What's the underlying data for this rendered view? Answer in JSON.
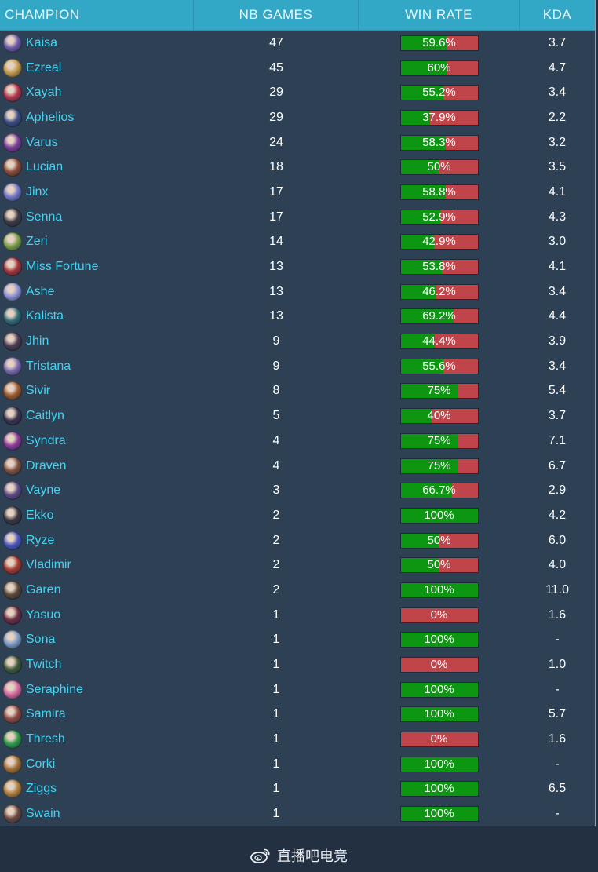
{
  "header": {
    "champion": "CHAMPION",
    "games": "NB GAMES",
    "win_rate": "WIN RATE",
    "kda": "KDA"
  },
  "colors": {
    "win": "#0d9612",
    "loss": "#c0454a",
    "name": "#43d3f2",
    "header_bg": "#33a7c6"
  },
  "rows": [
    {
      "name": "Kaisa",
      "games": "47",
      "win_label": "59.6%",
      "win": 59.6,
      "kda": "3.7",
      "avatar": "#6b5aa8"
    },
    {
      "name": "Ezreal",
      "games": "45",
      "win_label": "60%",
      "win": 60,
      "kda": "4.7",
      "avatar": "#c49a4a"
    },
    {
      "name": "Xayah",
      "games": "29",
      "win_label": "55.2%",
      "win": 55.2,
      "kda": "3.4",
      "avatar": "#b0364e"
    },
    {
      "name": "Aphelios",
      "games": "29",
      "win_label": "37.9%",
      "win": 37.9,
      "kda": "2.2",
      "avatar": "#3b4f86"
    },
    {
      "name": "Varus",
      "games": "24",
      "win_label": "58.3%",
      "win": 58.3,
      "kda": "3.2",
      "avatar": "#7a3f9c"
    },
    {
      "name": "Lucian",
      "games": "18",
      "win_label": "50%",
      "win": 50,
      "kda": "3.5",
      "avatar": "#8c4c3a"
    },
    {
      "name": "Jinx",
      "games": "17",
      "win_label": "58.8%",
      "win": 58.8,
      "kda": "4.1",
      "avatar": "#6f78c6"
    },
    {
      "name": "Senna",
      "games": "17",
      "win_label": "52.9%",
      "win": 52.9,
      "kda": "4.3",
      "avatar": "#3b3b46"
    },
    {
      "name": "Zeri",
      "games": "14",
      "win_label": "42.9%",
      "win": 42.9,
      "kda": "3.0",
      "avatar": "#7aa04a"
    },
    {
      "name": "Miss Fortune",
      "games": "13",
      "win_label": "53.8%",
      "win": 53.8,
      "kda": "4.1",
      "avatar": "#a2323a"
    },
    {
      "name": "Ashe",
      "games": "13",
      "win_label": "46.2%",
      "win": 46.2,
      "kda": "3.4",
      "avatar": "#8c92d6"
    },
    {
      "name": "Kalista",
      "games": "13",
      "win_label": "69.2%",
      "win": 69.2,
      "kda": "4.4",
      "avatar": "#2f6c78"
    },
    {
      "name": "Jhin",
      "games": "9",
      "win_label": "44.4%",
      "win": 44.4,
      "kda": "3.9",
      "avatar": "#4a3c52"
    },
    {
      "name": "Tristana",
      "games": "9",
      "win_label": "55.6%",
      "win": 55.6,
      "kda": "3.4",
      "avatar": "#7a6ab0"
    },
    {
      "name": "Sivir",
      "games": "8",
      "win_label": "75%",
      "win": 75,
      "kda": "5.4",
      "avatar": "#9a5a2e"
    },
    {
      "name": "Caitlyn",
      "games": "5",
      "win_label": "40%",
      "win": 40,
      "kda": "3.7",
      "avatar": "#3a3350"
    },
    {
      "name": "Syndra",
      "games": "4",
      "win_label": "75%",
      "win": 75,
      "kda": "7.1",
      "avatar": "#8a3a9a"
    },
    {
      "name": "Draven",
      "games": "4",
      "win_label": "75%",
      "win": 75,
      "kda": "6.7",
      "avatar": "#7a5040"
    },
    {
      "name": "Vayne",
      "games": "3",
      "win_label": "66.7%",
      "win": 66.7,
      "kda": "2.9",
      "avatar": "#5a4a86"
    },
    {
      "name": "Ekko",
      "games": "2",
      "win_label": "100%",
      "win": 100,
      "kda": "4.2",
      "avatar": "#3a3640"
    },
    {
      "name": "Ryze",
      "games": "2",
      "win_label": "50%",
      "win": 50,
      "kda": "6.0",
      "avatar": "#4a56c0"
    },
    {
      "name": "Vladimir",
      "games": "2",
      "win_label": "50%",
      "win": 50,
      "kda": "4.0",
      "avatar": "#a23a30"
    },
    {
      "name": "Garen",
      "games": "2",
      "win_label": "100%",
      "win": 100,
      "kda": "11.0",
      "avatar": "#5a4638"
    },
    {
      "name": "Yasuo",
      "games": "1",
      "win_label": "0%",
      "win": 0,
      "kda": "1.6",
      "avatar": "#6a2e44"
    },
    {
      "name": "Sona",
      "games": "1",
      "win_label": "100%",
      "win": 100,
      "kda": "-",
      "avatar": "#7a9ac6"
    },
    {
      "name": "Twitch",
      "games": "1",
      "win_label": "0%",
      "win": 0,
      "kda": "1.0",
      "avatar": "#3e5a3a"
    },
    {
      "name": "Seraphine",
      "games": "1",
      "win_label": "100%",
      "win": 100,
      "kda": "-",
      "avatar": "#d46aa0"
    },
    {
      "name": "Samira",
      "games": "1",
      "win_label": "100%",
      "win": 100,
      "kda": "5.7",
      "avatar": "#8a4a44"
    },
    {
      "name": "Thresh",
      "games": "1",
      "win_label": "0%",
      "win": 0,
      "kda": "1.6",
      "avatar": "#2e9a4a"
    },
    {
      "name": "Corki",
      "games": "1",
      "win_label": "100%",
      "win": 100,
      "kda": "-",
      "avatar": "#a0703a"
    },
    {
      "name": "Ziggs",
      "games": "1",
      "win_label": "100%",
      "win": 100,
      "kda": "6.5",
      "avatar": "#b0803e"
    },
    {
      "name": "Swain",
      "games": "1",
      "win_label": "100%",
      "win": 100,
      "kda": "-",
      "avatar": "#6a4a40"
    }
  ],
  "footer": {
    "icon": "weibo-icon",
    "text": "直播吧电竞"
  }
}
